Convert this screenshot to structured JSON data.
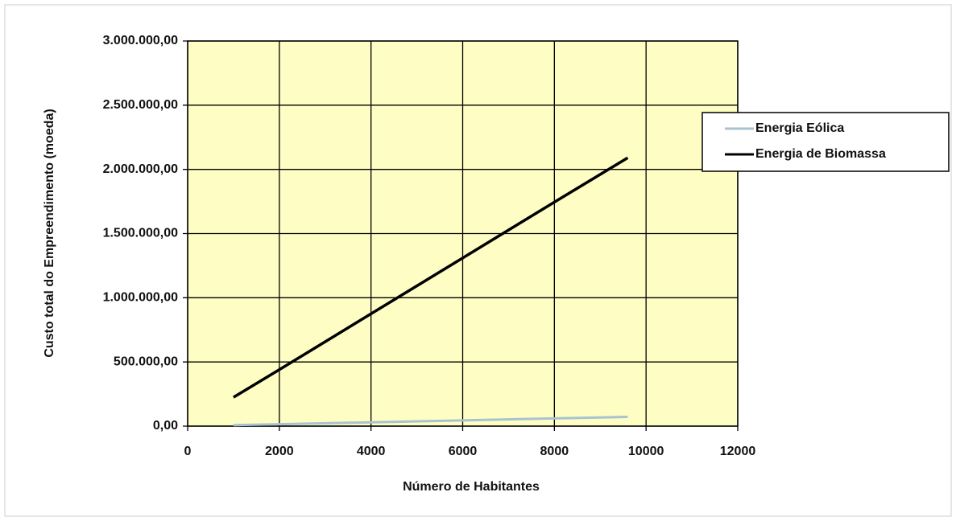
{
  "chart_data": {
    "type": "line",
    "y_label": "Custo total do Empreendimento (moeda)",
    "x_label": "Número de Habitantes",
    "x": [
      1000,
      2000,
      4000,
      6000,
      8000,
      9600
    ],
    "series": [
      {
        "name": "Energia Eólica",
        "color": "#a9c3cf",
        "values": [
          8000,
          15000,
          30000,
          45000,
          60000,
          72000
        ]
      },
      {
        "name": "Energia de Biomassa",
        "color": "#000000",
        "values": [
          225000,
          440000,
          875000,
          1310000,
          1745000,
          2090000
        ]
      }
    ],
    "xlim": [
      0,
      12000
    ],
    "xticks": [
      0,
      2000,
      4000,
      6000,
      8000,
      10000,
      12000
    ],
    "ylim": [
      0,
      3000000
    ],
    "yticks": [
      {
        "value": 0,
        "label": "0,00"
      },
      {
        "value": 500000,
        "label": "500.000,00"
      },
      {
        "value": 1000000,
        "label": "1.000.000,00"
      },
      {
        "value": 1500000,
        "label": "1.500.000,00"
      },
      {
        "value": 2000000,
        "label": "2.000.000,00"
      },
      {
        "value": 2500000,
        "label": "2.500.000,00"
      },
      {
        "value": 3000000,
        "label": "3.000.000,00"
      }
    ],
    "grid": true,
    "legend": "right",
    "plot_background": "#fdfdc4"
  }
}
